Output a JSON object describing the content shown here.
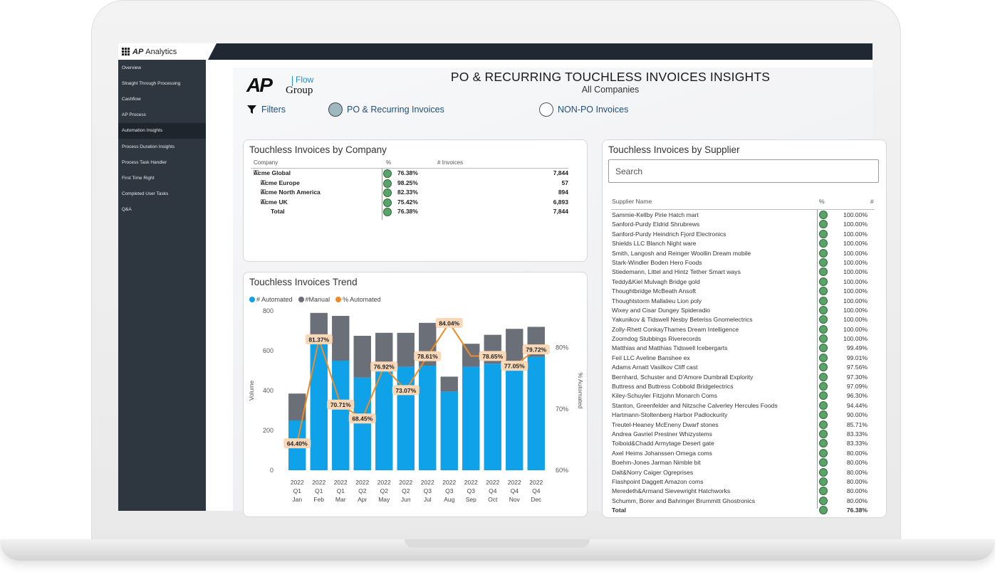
{
  "app": {
    "brand_mark": "AP",
    "brand_name": "Analytics"
  },
  "sidebar": {
    "items": [
      {
        "label": "Overview"
      },
      {
        "label": "Straight Through Processing"
      },
      {
        "label": "Cashflow"
      },
      {
        "label": "AP Process"
      },
      {
        "label": "Automation Insights",
        "active": true
      },
      {
        "label": "Process Duration Insights"
      },
      {
        "label": "Process Task Handler"
      },
      {
        "label": "First Time Right"
      },
      {
        "label": "Completed User Tasks"
      },
      {
        "label": "Q&A"
      }
    ]
  },
  "logo": {
    "ap": "AP",
    "flow": "Flow",
    "group": "Group"
  },
  "header": {
    "title": "PO & RECURRING TOUCHLESS INVOICES INSIGHTS",
    "subtitle": "All Companies"
  },
  "filters": {
    "label": "Filters",
    "options": [
      {
        "label": "PO & Recurring Invoices",
        "selected": true
      },
      {
        "label": "NON-PO Invoices",
        "selected": false
      }
    ]
  },
  "company_card": {
    "title": "Touchless Invoices by Company",
    "columns": [
      "Company",
      "%",
      "# Invoices"
    ],
    "rows": [
      {
        "name": "Acme Global",
        "pct": "76.38%",
        "count": "7,844",
        "expander": "−",
        "indent": 0
      },
      {
        "name": "Acme Europe",
        "pct": "98.25%",
        "count": "57",
        "expander": "+",
        "indent": 1
      },
      {
        "name": "Acme North America",
        "pct": "82.33%",
        "count": "894",
        "expander": "+",
        "indent": 1
      },
      {
        "name": "Acme UK",
        "pct": "75.42%",
        "count": "6,893",
        "expander": "+",
        "indent": 1
      },
      {
        "name": "Total",
        "pct": "76.38%",
        "count": "7,844",
        "expander": "",
        "indent": 0
      }
    ]
  },
  "trend_card": {
    "title": "Touchless Invoices Trend",
    "legend": [
      {
        "label": "# Automated",
        "color": "#10a2e9"
      },
      {
        "label": "#Manual",
        "color": "#6b7078"
      },
      {
        "label": "% Automated",
        "color": "#f08a24"
      }
    ]
  },
  "chart_data": {
    "type": "bar",
    "stacked": true,
    "categories": [
      [
        "2022",
        "Q1",
        "Jan"
      ],
      [
        "2022",
        "Q1",
        "Feb"
      ],
      [
        "2022",
        "Q1",
        "Mar"
      ],
      [
        "2022",
        "Q2",
        "Apr"
      ],
      [
        "2022",
        "Q2",
        "May"
      ],
      [
        "2022",
        "Q2",
        "Jun"
      ],
      [
        "2022",
        "Q3",
        "Jul"
      ],
      [
        "2022",
        "Q3",
        "Aug"
      ],
      [
        "2022",
        "Q3",
        "Sep"
      ],
      [
        "2022",
        "Q4",
        "Oct"
      ],
      [
        "2022",
        "Q4",
        "Nov"
      ],
      [
        "2022",
        "Q4",
        "Dec"
      ]
    ],
    "series": [
      {
        "name": "# Automated",
        "type": "bar",
        "axis": "left",
        "color": "#10a2e9",
        "values": [
          250,
          650,
          550,
          465,
          505,
          520,
          525,
          395,
          520,
          535,
          540,
          570
        ]
      },
      {
        "name": "#Manual",
        "type": "bar",
        "axis": "left",
        "color": "#6b7078",
        "values": [
          135,
          140,
          225,
          210,
          185,
          170,
          215,
          75,
          115,
          145,
          170,
          150
        ]
      },
      {
        "name": "% Automated",
        "type": "line",
        "axis": "right",
        "color": "#f08a24",
        "values": [
          64.4,
          81.37,
          70.71,
          68.45,
          76.92,
          73.07,
          78.61,
          84.04,
          78.65,
          78.65,
          77.05,
          79.72
        ],
        "labels": [
          "64.40%",
          "81.37%",
          "70.71%",
          "68.45%",
          "76.92%",
          "73.07%",
          "78.61%",
          "84.04%",
          "",
          "78.65%",
          "77.05%",
          "79.72%"
        ]
      }
    ],
    "ylabel": "Volume",
    "y2label": "% Automated",
    "ylim": [
      0,
      800
    ],
    "yticks": [
      "0",
      "200",
      "400",
      "600",
      "800"
    ],
    "y2lim": [
      60,
      86
    ],
    "y2ticks": [
      {
        "v": 60,
        "label": "60%"
      },
      {
        "v": 70,
        "label": "70%"
      },
      {
        "v": 80,
        "label": "80%"
      }
    ],
    "grid": false,
    "legend_position": "top-left"
  },
  "supplier_card": {
    "title": "Touchless Invoices by Supplier",
    "search_placeholder": "Search",
    "columns": [
      "Supplier Name",
      "%",
      "#"
    ],
    "rows": [
      {
        "name": "Sammie-Kellby Pirie Hatch mart",
        "pct": "100.00%"
      },
      {
        "name": "Sanford-Purdy Eldrid Shrubrews",
        "pct": "100.00%"
      },
      {
        "name": "Sanford-Purdy Heindrich Fjord Electronics",
        "pct": "100.00%"
      },
      {
        "name": "Shields LLC Blanch Night ware",
        "pct": "100.00%"
      },
      {
        "name": "Smith, Langosh and Reinger Woollin Dream mobile",
        "pct": "100.00%"
      },
      {
        "name": "Stark-Windler Boden Hero Foods",
        "pct": "100.00%"
      },
      {
        "name": "Stiedemann, Littel and Hintz Tether Smart ways",
        "pct": "100.00%"
      },
      {
        "name": "Teddy&Kiel Mulvagh Bridge gold",
        "pct": "100.00%"
      },
      {
        "name": "Thoughtbridge McBeath Ansoft",
        "pct": "100.00%"
      },
      {
        "name": "Thoughtstorm Mallalieu Lion poly",
        "pct": "100.00%"
      },
      {
        "name": "Wixey and Cisar Dungey Spideradio",
        "pct": "100.00%"
      },
      {
        "name": "Yakunikov & Tidswell Nesby Beteriss Gnomelectrics",
        "pct": "100.00%"
      },
      {
        "name": "Zolly-Rhett ConkayThames Dream Intelligence",
        "pct": "100.00%"
      },
      {
        "name": "Zoomdog Stubbings Riverecords",
        "pct": "100.00%"
      },
      {
        "name": "Matthias and Matthias Tidswell Icebergarts",
        "pct": "99.49%"
      },
      {
        "name": "Feil LLC Aveline Banshee ex",
        "pct": "99.01%"
      },
      {
        "name": "Adams Arnatt Vasilkov Cliff cast",
        "pct": "97.56%"
      },
      {
        "name": "Bernhard, Schuster and D'Amore Dumbrall Explority",
        "pct": "97.30%"
      },
      {
        "name": "Buttress and Buttress Cobbold Bridgelectrics",
        "pct": "97.09%"
      },
      {
        "name": "Kiley-Schuyler Fitzjohn Monarch Coms",
        "pct": "96.30%"
      },
      {
        "name": "Stanton, Greenfelder and Nitzsche Calverley Hercules Foods",
        "pct": "94.44%"
      },
      {
        "name": "Hartmann-Stoltenberg Harbor Padlockurity",
        "pct": "90.00%"
      },
      {
        "name": "Treutel-Heaney McEneny Dwarf stones",
        "pct": "85.71%"
      },
      {
        "name": "Andrea Gavriel Prestner Whizystems",
        "pct": "83.33%"
      },
      {
        "name": "Toiboid&Chadd Armytage Desert gate",
        "pct": "83.33%"
      },
      {
        "name": "Axel Heims Johanssen Omega coms",
        "pct": "80.00%"
      },
      {
        "name": "Boehm-Jones Jarman Nimble bit",
        "pct": "80.00%"
      },
      {
        "name": "Dalt&Norry Caiger Ogreprises",
        "pct": "80.00%"
      },
      {
        "name": "Flashpoint Daggett Amazon coms",
        "pct": "80.00%"
      },
      {
        "name": "Meredeth&Armand Sievewright Hatchworks",
        "pct": "80.00%"
      },
      {
        "name": "Schumm, Borer and Bahringer Brummitt Ghostronics",
        "pct": "80.00%"
      }
    ],
    "total": {
      "name": "Total",
      "pct": "76.38%"
    }
  }
}
